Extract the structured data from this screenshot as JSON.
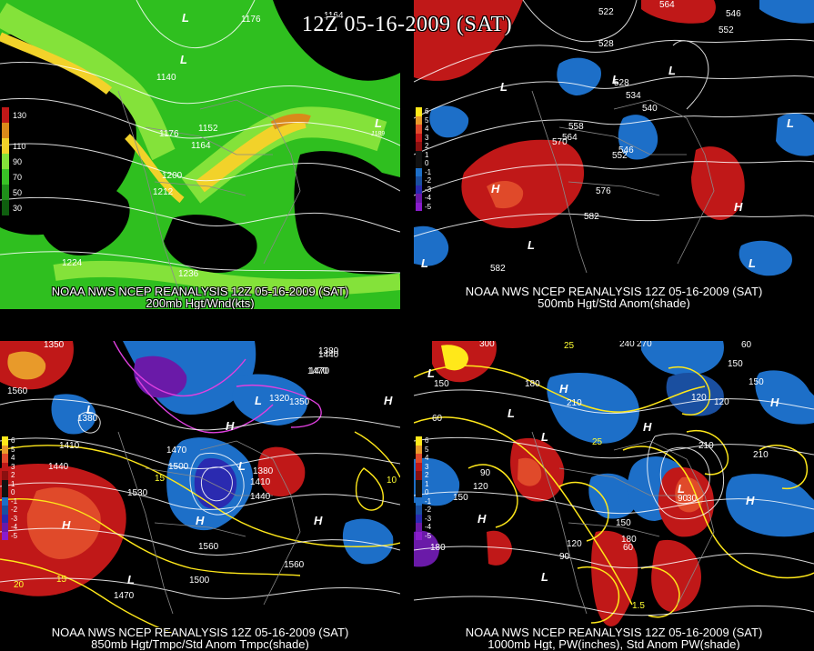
{
  "title": "12Z 05-16-2009 (SAT)",
  "colors": {
    "background": "#000000",
    "wind_green": "#2fbf1f",
    "wind_light_green": "#84e23a",
    "wind_yellow": "#f2d22a",
    "wind_orange": "#d98a1a",
    "anom_red": "#c01818",
    "anom_blue": "#1d6fc8",
    "anom_purple": "#8a1ccc",
    "contour_yellow": "#ffe81a",
    "contour_magenta": "#e040e0"
  },
  "panels": {
    "top_left": {
      "caption_line1": "NOAA NWS NCEP REANALYSIS 12Z 05-16-2009 (SAT)",
      "caption_line2": "200mb Hgt/Wnd(kts)",
      "legend": [
        {
          "label": "130",
          "color": "#c01818"
        },
        {
          "label": "",
          "color": "#d98a1a"
        },
        {
          "label": "110",
          "color": "#f2d22a"
        },
        {
          "label": "90",
          "color": "#84e23a"
        },
        {
          "label": "70",
          "color": "#39c126"
        },
        {
          "label": "50",
          "color": "#1f8f1a"
        },
        {
          "label": "30",
          "color": "#0f5e0f"
        }
      ],
      "contour_labels": [
        "1176",
        "1140",
        "1176",
        "1152",
        "1164",
        "1200",
        "1212",
        "1224",
        "1236",
        "1164",
        "1189"
      ],
      "centers": [
        "L",
        "L",
        "L"
      ]
    },
    "top_right": {
      "caption_line1": "NOAA NWS NCEP REANALYSIS 12Z 05-16-2009 (SAT)",
      "caption_line2": "500mb Hgt/Std Anom(shade)",
      "legend": [
        {
          "label": "6",
          "color": "#ffe81a"
        },
        {
          "label": "5",
          "color": "#e89a2a"
        },
        {
          "label": "4",
          "color": "#e04a2a"
        },
        {
          "label": "3",
          "color": "#c01818"
        },
        {
          "label": "2",
          "color": "#8a1010"
        },
        {
          "label": "1",
          "color": "#000000"
        },
        {
          "label": "0",
          "color": "#000000"
        },
        {
          "label": "-1",
          "color": "#1d6fc8"
        },
        {
          "label": "-2",
          "color": "#1a4fa0"
        },
        {
          "label": "-3",
          "color": "#2a2ab0"
        },
        {
          "label": "-4",
          "color": "#6a1aa8"
        },
        {
          "label": "-5",
          "color": "#8a1ccc"
        }
      ],
      "contour_labels": [
        "522",
        "564",
        "546",
        "552",
        "528",
        "528",
        "534",
        "540",
        "558",
        "564",
        "570",
        "546",
        "552",
        "576",
        "582",
        "582"
      ],
      "centers": [
        "L",
        "L",
        "L",
        "L",
        "H",
        "H",
        "L",
        "L",
        "L"
      ]
    },
    "bottom_left": {
      "caption_line1": "NOAA NWS NCEP REANALYSIS 12Z 05-16-2009 (SAT)",
      "caption_line2": "850mb Hgt/Tmpc/Std Anom Tmpc(shade)",
      "legend": [
        {
          "label": "6",
          "color": "#ffe81a"
        },
        {
          "label": "5",
          "color": "#e89a2a"
        },
        {
          "label": "4",
          "color": "#e04a2a"
        },
        {
          "label": "3",
          "color": "#c01818"
        },
        {
          "label": "2",
          "color": "#8a1010"
        },
        {
          "label": "1",
          "color": "#000000"
        },
        {
          "label": "0",
          "color": "#000000"
        },
        {
          "label": "-1",
          "color": "#1d6fc8"
        },
        {
          "label": "-2",
          "color": "#1a4fa0"
        },
        {
          "label": "-3",
          "color": "#2a2ab0"
        },
        {
          "label": "-4",
          "color": "#6a1aa8"
        },
        {
          "label": "-5",
          "color": "#8a1ccc"
        }
      ],
      "contour_labels": [
        "1350",
        "1560",
        "1380",
        "1440",
        "1410",
        "1470",
        "1500",
        "1530",
        "1560",
        "1470",
        "1500",
        "1560",
        "1380",
        "1440",
        "1470",
        "1320",
        "1350",
        "1380",
        "1410",
        "1440",
        "1470",
        "15",
        "10",
        "15",
        "20"
      ],
      "centers": [
        "L",
        "H",
        "H",
        "L",
        "H",
        "H",
        "H",
        "L",
        "L"
      ]
    },
    "bottom_right": {
      "caption_line1": "NOAA NWS NCEP REANALYSIS 12Z 05-16-2009 (SAT)",
      "caption_line2": "1000mb Hgt, PW(inches), Std Anom PW(shade)",
      "legend": [
        {
          "label": "6",
          "color": "#ffe81a"
        },
        {
          "label": "5",
          "color": "#e89a2a"
        },
        {
          "label": "4",
          "color": "#e04a2a"
        },
        {
          "label": "3",
          "color": "#c01818"
        },
        {
          "label": "2",
          "color": "#8a1010"
        },
        {
          "label": "1",
          "color": "#000000"
        },
        {
          "label": "0",
          "color": "#000000"
        },
        {
          "label": "-1",
          "color": "#1d6fc8"
        },
        {
          "label": "-2",
          "color": "#1a4fa0"
        },
        {
          "label": "-3",
          "color": "#2a2ab0"
        },
        {
          "label": "-4",
          "color": "#6a1aa8"
        },
        {
          "label": "-5",
          "color": "#8a1ccc"
        }
      ],
      "contour_labels": [
        "300",
        "240",
        "270",
        "60",
        "180",
        "210",
        "150",
        "120",
        "150",
        "90",
        "120",
        "150",
        "60",
        "210",
        "210",
        "90",
        "120",
        "150",
        "30",
        "60",
        "90",
        "120",
        "180",
        "150",
        "180",
        "1.5",
        "25",
        "25"
      ],
      "centers": [
        "L",
        "L",
        "H",
        "L",
        "H",
        "H",
        "H",
        "L",
        "H",
        "L"
      ]
    }
  }
}
